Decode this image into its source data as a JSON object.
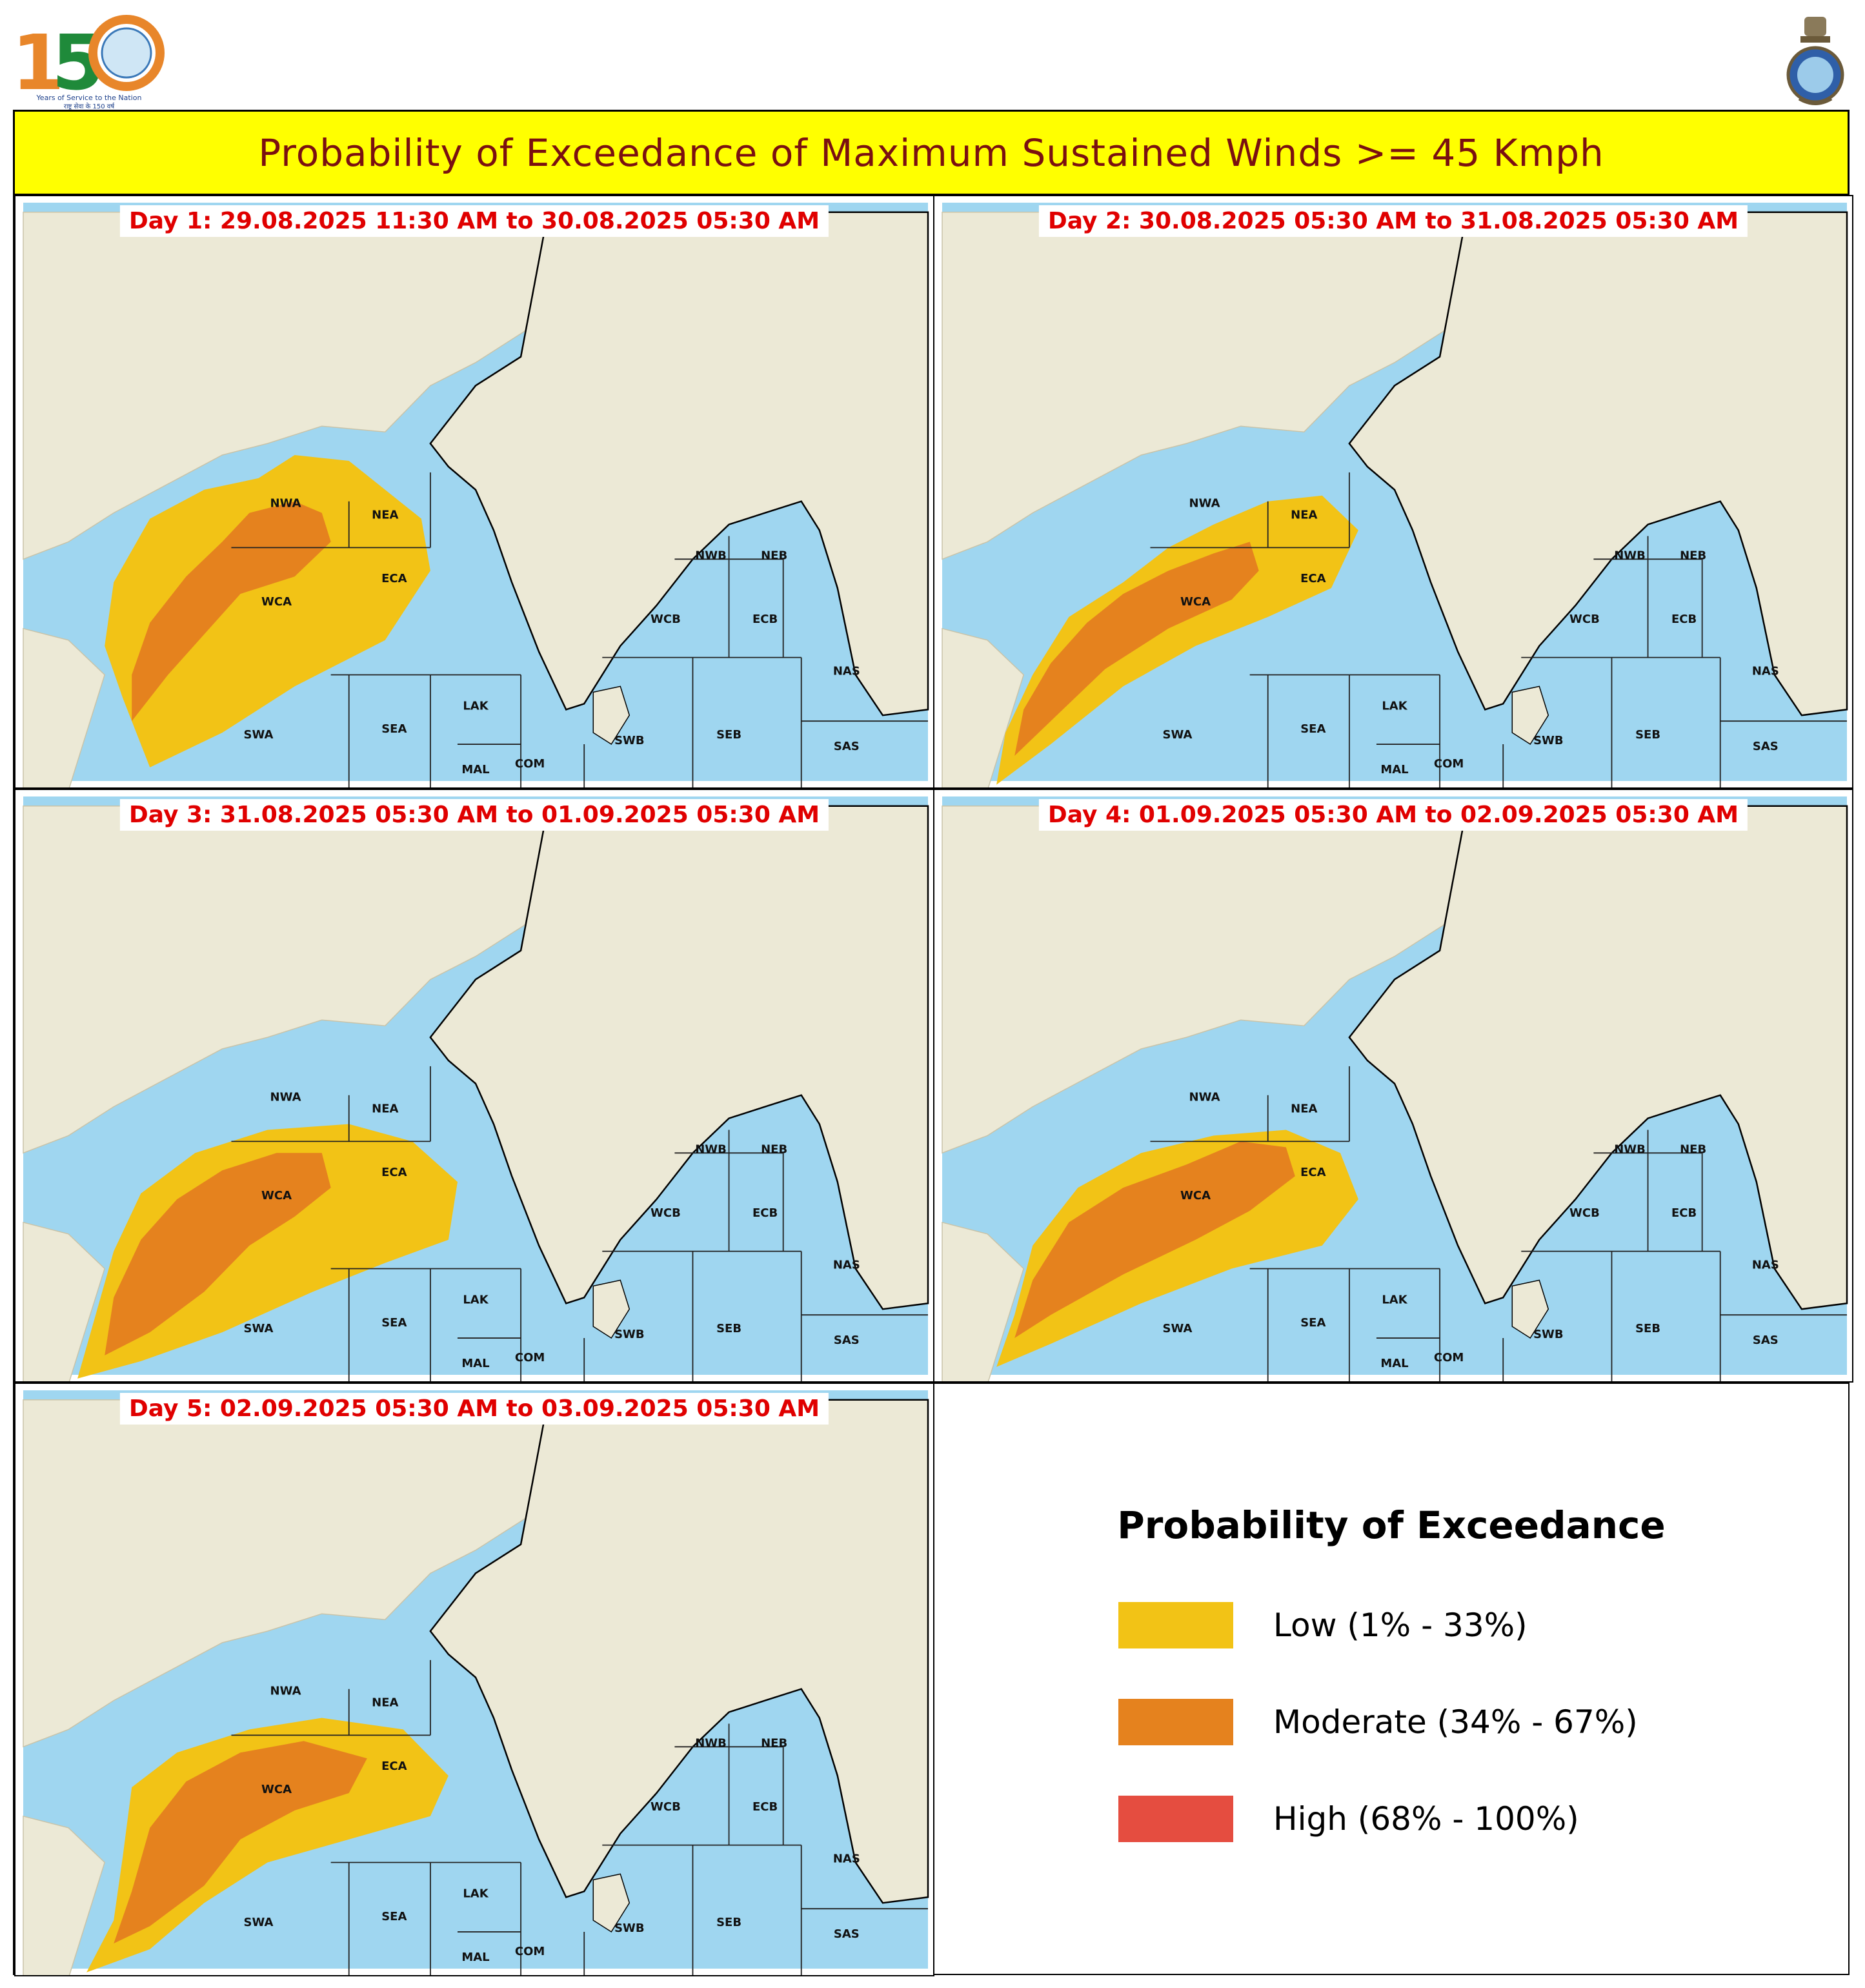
{
  "header": {
    "title": "Probability of Exceedance of Maximum Sustained Winds >= 45 Kmph",
    "logo_number": "150",
    "logo_tagline": "Years of Service to the Nation",
    "logo_tagline_hindi": "राष्ट्र सेवा के 150 वर्ष"
  },
  "colors": {
    "title_background": "#ffff00",
    "title_text": "#7a1010",
    "day_label_text": "#e00000",
    "sea": "#9fd6f0",
    "land": "#ece9d6",
    "low": "#f2c316",
    "moderate": "#e5821e",
    "high": "#e54d40"
  },
  "panels": [
    {
      "label": "Day 1: 29.08.2025 11:30 AM to 30.08.2025 05:30 AM",
      "regions": [
        "NWA",
        "NEA",
        "ECA",
        "WCA",
        "SWA",
        "SEA",
        "LAK",
        "MAL",
        "COM",
        "SWB",
        "SEB",
        "WCB",
        "ECB",
        "NWB",
        "NEB",
        "NAS",
        "SAS"
      ],
      "probability_areas": [
        {
          "level": "low",
          "polygon": [
            [
              0.11,
              0.84
            ],
            [
              0.09,
              0.75
            ],
            [
              0.1,
              0.64
            ],
            [
              0.14,
              0.53
            ],
            [
              0.2,
              0.48
            ],
            [
              0.26,
              0.46
            ],
            [
              0.3,
              0.42
            ],
            [
              0.36,
              0.43
            ],
            [
              0.4,
              0.48
            ],
            [
              0.44,
              0.53
            ],
            [
              0.45,
              0.62
            ],
            [
              0.4,
              0.74
            ],
            [
              0.3,
              0.82
            ],
            [
              0.22,
              0.9
            ],
            [
              0.14,
              0.96
            ]
          ]
        },
        {
          "level": "moderate",
          "polygon": [
            [
              0.12,
              0.88
            ],
            [
              0.12,
              0.8
            ],
            [
              0.14,
              0.71
            ],
            [
              0.18,
              0.63
            ],
            [
              0.22,
              0.57
            ],
            [
              0.25,
              0.52
            ],
            [
              0.3,
              0.5
            ],
            [
              0.33,
              0.52
            ],
            [
              0.34,
              0.57
            ],
            [
              0.3,
              0.63
            ],
            [
              0.24,
              0.66
            ],
            [
              0.2,
              0.73
            ],
            [
              0.16,
              0.8
            ]
          ]
        }
      ]
    },
    {
      "label": "Day 2: 30.08.2025 05:30 AM to 31.08.2025 05:30 AM",
      "regions": [
        "NWA",
        "NEA",
        "ECA",
        "WCA",
        "SWA",
        "SEA",
        "LAK",
        "MAL",
        "COM",
        "SWB",
        "SEB",
        "WCB",
        "ECB",
        "NWB",
        "NEB",
        "NAS",
        "SAS"
      ],
      "probability_areas": [
        {
          "level": "low",
          "polygon": [
            [
              0.06,
              0.99
            ],
            [
              0.07,
              0.9
            ],
            [
              0.1,
              0.8
            ],
            [
              0.14,
              0.7
            ],
            [
              0.2,
              0.64
            ],
            [
              0.25,
              0.58
            ],
            [
              0.3,
              0.54
            ],
            [
              0.36,
              0.5
            ],
            [
              0.42,
              0.49
            ],
            [
              0.46,
              0.55
            ],
            [
              0.43,
              0.65
            ],
            [
              0.36,
              0.7
            ],
            [
              0.28,
              0.75
            ],
            [
              0.2,
              0.82
            ],
            [
              0.12,
              0.92
            ]
          ]
        },
        {
          "level": "moderate",
          "polygon": [
            [
              0.08,
              0.94
            ],
            [
              0.09,
              0.86
            ],
            [
              0.12,
              0.78
            ],
            [
              0.16,
              0.71
            ],
            [
              0.2,
              0.66
            ],
            [
              0.25,
              0.62
            ],
            [
              0.3,
              0.59
            ],
            [
              0.34,
              0.57
            ],
            [
              0.35,
              0.62
            ],
            [
              0.32,
              0.67
            ],
            [
              0.25,
              0.72
            ],
            [
              0.18,
              0.79
            ],
            [
              0.12,
              0.88
            ]
          ]
        }
      ]
    },
    {
      "label": "Day 3: 31.08.2025 05:30 AM to 01.09.2025 05:30 AM",
      "regions": [
        "NWA",
        "NEA",
        "ECA",
        "WCA",
        "SWA",
        "SEA",
        "LAK",
        "MAL",
        "COM",
        "SWB",
        "SEB",
        "WCB",
        "ECB",
        "NWB",
        "NEB",
        "NAS",
        "SAS"
      ],
      "probability_areas": [
        {
          "level": "low",
          "polygon": [
            [
              0.06,
              0.99
            ],
            [
              0.08,
              0.88
            ],
            [
              0.1,
              0.77
            ],
            [
              0.13,
              0.67
            ],
            [
              0.19,
              0.6
            ],
            [
              0.27,
              0.56
            ],
            [
              0.36,
              0.55
            ],
            [
              0.43,
              0.58
            ],
            [
              0.48,
              0.65
            ],
            [
              0.47,
              0.75
            ],
            [
              0.4,
              0.79
            ],
            [
              0.32,
              0.84
            ],
            [
              0.22,
              0.91
            ],
            [
              0.13,
              0.96
            ]
          ]
        },
        {
          "level": "moderate",
          "polygon": [
            [
              0.09,
              0.95
            ],
            [
              0.1,
              0.85
            ],
            [
              0.13,
              0.75
            ],
            [
              0.17,
              0.68
            ],
            [
              0.22,
              0.63
            ],
            [
              0.28,
              0.6
            ],
            [
              0.33,
              0.6
            ],
            [
              0.34,
              0.66
            ],
            [
              0.3,
              0.71
            ],
            [
              0.25,
              0.76
            ],
            [
              0.2,
              0.84
            ],
            [
              0.14,
              0.91
            ]
          ]
        }
      ]
    },
    {
      "label": "Day 4: 01.09.2025 05:30 AM to 02.09.2025 05:30 AM",
      "regions": [
        "NWA",
        "NEA",
        "ECA",
        "WCA",
        "SWA",
        "SEA",
        "LAK",
        "MAL",
        "COM",
        "SWB",
        "SEB",
        "WCB",
        "ECB",
        "NWB",
        "NEB",
        "NAS",
        "SAS"
      ],
      "probability_areas": [
        {
          "level": "low",
          "polygon": [
            [
              0.06,
              0.97
            ],
            [
              0.08,
              0.88
            ],
            [
              0.1,
              0.76
            ],
            [
              0.15,
              0.66
            ],
            [
              0.22,
              0.6
            ],
            [
              0.3,
              0.57
            ],
            [
              0.38,
              0.56
            ],
            [
              0.44,
              0.6
            ],
            [
              0.46,
              0.68
            ],
            [
              0.42,
              0.76
            ],
            [
              0.32,
              0.8
            ],
            [
              0.22,
              0.86
            ],
            [
              0.12,
              0.93
            ]
          ]
        },
        {
          "level": "moderate",
          "polygon": [
            [
              0.08,
              0.92
            ],
            [
              0.1,
              0.82
            ],
            [
              0.14,
              0.72
            ],
            [
              0.2,
              0.66
            ],
            [
              0.27,
              0.62
            ],
            [
              0.33,
              0.58
            ],
            [
              0.38,
              0.59
            ],
            [
              0.39,
              0.64
            ],
            [
              0.34,
              0.7
            ],
            [
              0.28,
              0.75
            ],
            [
              0.2,
              0.81
            ],
            [
              0.12,
              0.88
            ]
          ]
        }
      ]
    },
    {
      "label": "Day 5: 02.09.2025 05:30 AM to 03.09.2025 05:30 AM",
      "regions": [
        "NWA",
        "NEA",
        "ECA",
        "WCA",
        "SWA",
        "SEA",
        "LAK",
        "MAL",
        "COM",
        "SWB",
        "SEB",
        "WCB",
        "ECB",
        "NWB",
        "NEB",
        "NAS",
        "SAS"
      ],
      "probability_areas": [
        {
          "level": "low",
          "polygon": [
            [
              0.07,
              0.99
            ],
            [
              0.1,
              0.9
            ],
            [
              0.11,
              0.79
            ],
            [
              0.12,
              0.67
            ],
            [
              0.17,
              0.61
            ],
            [
              0.25,
              0.57
            ],
            [
              0.33,
              0.55
            ],
            [
              0.42,
              0.57
            ],
            [
              0.47,
              0.65
            ],
            [
              0.45,
              0.72
            ],
            [
              0.36,
              0.76
            ],
            [
              0.27,
              0.8
            ],
            [
              0.2,
              0.87
            ],
            [
              0.14,
              0.95
            ]
          ]
        },
        {
          "level": "moderate",
          "polygon": [
            [
              0.1,
              0.94
            ],
            [
              0.12,
              0.85
            ],
            [
              0.14,
              0.74
            ],
            [
              0.18,
              0.66
            ],
            [
              0.24,
              0.61
            ],
            [
              0.31,
              0.59
            ],
            [
              0.38,
              0.62
            ],
            [
              0.36,
              0.68
            ],
            [
              0.3,
              0.71
            ],
            [
              0.24,
              0.76
            ],
            [
              0.2,
              0.84
            ],
            [
              0.14,
              0.91
            ]
          ]
        }
      ]
    }
  ],
  "legend": {
    "title": "Probability of Exceedance",
    "items": [
      {
        "label": "Low (1% - 33%)",
        "color": "#f2c316"
      },
      {
        "label": "Moderate (34% - 67%)",
        "color": "#e5821e"
      },
      {
        "label": "High (68% - 100%)",
        "color": "#e54d40"
      }
    ]
  }
}
